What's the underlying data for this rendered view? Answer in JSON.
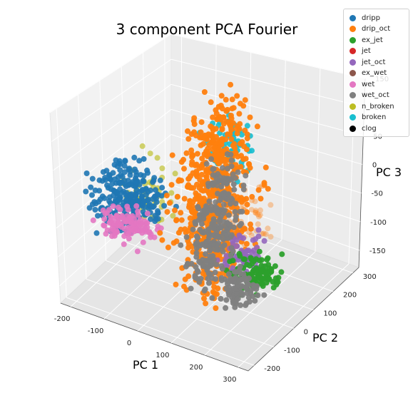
{
  "chart_data": {
    "type": "scatter",
    "title": "3 component PCA Fourier",
    "xlabel": "PC 1",
    "ylabel": "PC 2",
    "zlabel": "PC 3",
    "xlim": [
      -230,
      330
    ],
    "ylim": [
      -230,
      330
    ],
    "zlim": [
      -180,
      150
    ],
    "x_ticks": [
      "-200",
      "-100",
      "0",
      "100",
      "200",
      "300"
    ],
    "y_ticks": [
      "-200",
      "-100",
      "0",
      "100",
      "200",
      "300"
    ],
    "z_ticks": [
      "-150",
      "-100",
      "-50",
      "0",
      "50",
      "100",
      "150"
    ],
    "grid": true,
    "legend_position": "top-right",
    "series": [
      {
        "name": "dripp",
        "color": "#1f77b4"
      },
      {
        "name": "drip_oct",
        "color": "#ff7f0e"
      },
      {
        "name": "ex_jet",
        "color": "#2ca02c"
      },
      {
        "name": "jet",
        "color": "#d62728"
      },
      {
        "name": "jet_oct",
        "color": "#9467bd"
      },
      {
        "name": "ex_wet",
        "color": "#8c564b"
      },
      {
        "name": "wet",
        "color": "#e377c2"
      },
      {
        "name": "wet_oct",
        "color": "#7f7f7f"
      },
      {
        "name": "n_broken",
        "color": "#bcbd22"
      },
      {
        "name": "broken",
        "color": "#17becf"
      },
      {
        "name": "clog",
        "color": "#000000"
      }
    ]
  }
}
